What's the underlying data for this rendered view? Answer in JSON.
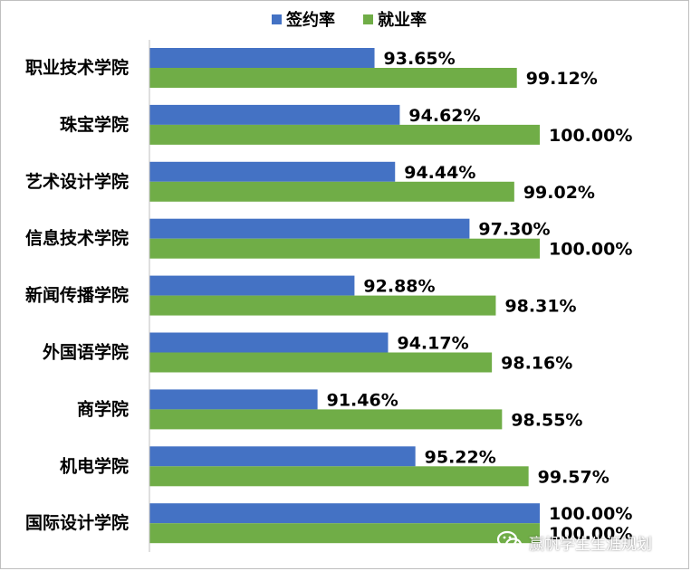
{
  "chart_data": {
    "type": "bar",
    "orientation": "horizontal",
    "categories": [
      "职业技术学院",
      "珠宝学院",
      "艺术设计学院",
      "信息技术学院",
      "新闻传播学院",
      "外国语学院",
      "商学院",
      "机电学院",
      "国际设计学院"
    ],
    "series": [
      {
        "name": "签约率",
        "color": "#4472C4",
        "values": [
          93.65,
          94.62,
          94.44,
          97.3,
          92.88,
          94.17,
          91.46,
          95.22,
          100.0
        ],
        "labels": [
          "93.65%",
          "94.62%",
          "94.44%",
          "97.30%",
          "92.88%",
          "94.17%",
          "91.46%",
          "95.22%",
          "100.00%"
        ]
      },
      {
        "name": "就业率",
        "color": "#70AD47",
        "values": [
          99.12,
          100.0,
          99.02,
          100.0,
          98.31,
          98.16,
          98.55,
          99.57,
          100.0
        ],
        "labels": [
          "99.12%",
          "100.00%",
          "99.02%",
          "100.00%",
          "98.31%",
          "98.16%",
          "98.55%",
          "99.57%",
          "100.00%"
        ]
      }
    ],
    "xlim": [
      85,
      100
    ],
    "legend_position": "top",
    "grid": false
  },
  "watermark": {
    "text": "赢帆学生生涯规划",
    "icon": "wechat-icon"
  }
}
